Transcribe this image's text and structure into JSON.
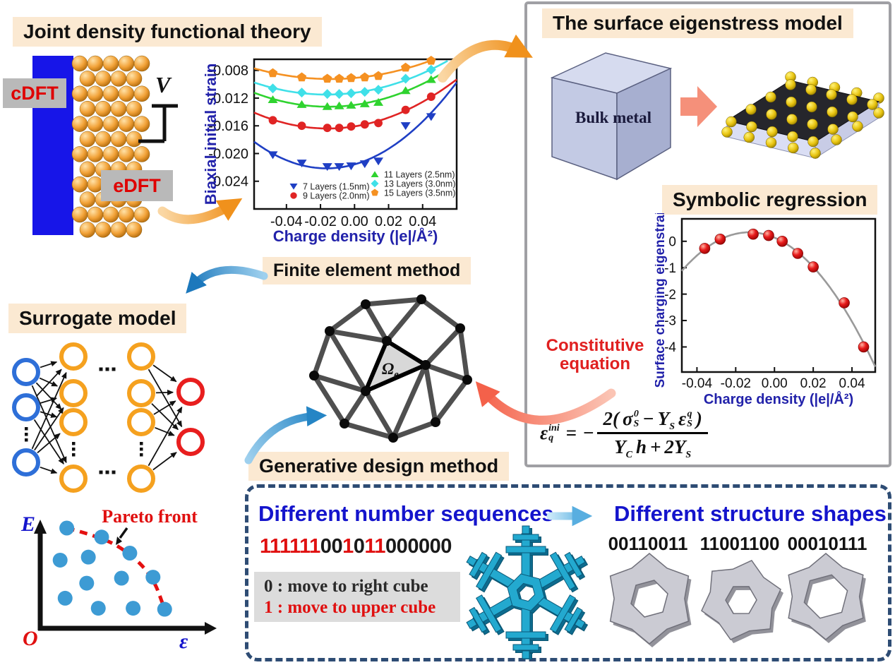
{
  "colors": {
    "peach": "#FBE9D2",
    "label_gray": "#B9B9B9",
    "label_red": "#DF0000",
    "blue_bar": "#1715E8",
    "axis_blue": "#2222AA",
    "title_blue": "#1414CC",
    "dash_navy": "#2E4C74",
    "arrow_orange": "#F0911C",
    "arrow_blue": "#1C78BC",
    "arrow_salmon": "#F4614A"
  },
  "jdft": {
    "title": "Joint density functional theory",
    "cdft": "cDFT",
    "edft": "eDFT",
    "voltage": "V"
  },
  "eigenstress": {
    "title": "The surface eigenstress model",
    "bulk_label": "Bulk metal"
  },
  "symbolic": {
    "title": "Symbolic regression",
    "constitutive_line1": "Constitutive",
    "constitutive_line2": "equation"
  },
  "formula": {
    "lhs": {
      "t": "ε",
      "sup": "ini",
      "sub": "q"
    },
    "eq": "=",
    "minus": "−",
    "num": [
      {
        "t": "2("
      },
      {
        "t": "σ",
        "sup": "0",
        "sub": "S"
      },
      {
        "t": "−"
      },
      {
        "t": "Y",
        "sub": "S"
      },
      {
        "t": "ε",
        "sup": "q",
        "sub": "S"
      },
      {
        "t": ")"
      }
    ],
    "den": [
      {
        "t": "Y",
        "sub": "C"
      },
      {
        "t": "h"
      },
      {
        "t": "+"
      },
      {
        "t": "2Y",
        "sub": "S"
      }
    ]
  },
  "fem": {
    "title": "Finite element method",
    "element_label": "Ω",
    "element_sub": "e"
  },
  "surrogate": {
    "title": "Surrogate model"
  },
  "generative": {
    "title": "Generative design method"
  },
  "sequence_panel": {
    "title": "Different number sequences",
    "binary": "111111001011000000",
    "one_color": "#E01010",
    "zero_color": "#1A1A1A",
    "rule_zero": "0 : move to right cube",
    "rule_one": "1 : move to upper cube"
  },
  "shapes_panel": {
    "title": "Different structure shapes",
    "labels": [
      "00110011",
      "11001100",
      "00010111"
    ]
  },
  "nn": {
    "input_color": "#2E6FD8",
    "hidden_color": "#F5A11F",
    "output_color": "#E81E1E",
    "layers": [
      {
        "type": "input",
        "count": 3
      },
      {
        "type": "hidden",
        "count": 4
      },
      {
        "type": "hidden",
        "count": 4
      },
      {
        "type": "output",
        "count": 2
      }
    ]
  },
  "chart_data": [
    {
      "type": "scatter",
      "xlabel": "Charge density (|e|/Å²)",
      "ylabel": "Biaxial initial strain",
      "xlim": [
        -0.059,
        0.06
      ],
      "ylim": [
        -0.028,
        -0.0064
      ],
      "xticks": [
        "-0.04",
        "-0.02",
        "0.00",
        "0.02",
        "0.04"
      ],
      "xtick_vals": [
        -0.04,
        -0.02,
        0,
        0.02,
        0.04
      ],
      "yticks": [
        "-0.008",
        "-0.012",
        "-0.016",
        "-0.020",
        "-0.024"
      ],
      "ytick_vals": [
        -0.008,
        -0.012,
        -0.016,
        -0.02,
        -0.024
      ],
      "x": [
        -0.048,
        -0.031,
        -0.016,
        -0.009,
        -0.002,
        0.006,
        0.014,
        0.03,
        0.045
      ],
      "series": [
        {
          "name": "7 Layers (1.5nm)",
          "marker": "triangle-down",
          "color": "#1F3FC4",
          "values": [
            -0.0202,
            -0.0214,
            -0.0219,
            -0.0219,
            -0.0218,
            -0.0215,
            -0.0211,
            -0.016,
            -0.0147
          ]
        },
        {
          "name": "9 Layers (2.0nm)",
          "marker": "circle",
          "color": "#E02424",
          "values": [
            -0.0152,
            -0.016,
            -0.0163,
            -0.0163,
            -0.0161,
            -0.0158,
            -0.0156,
            -0.0137,
            -0.0118
          ]
        },
        {
          "name": "11 Layers (2.5nm)",
          "marker": "triangle-up",
          "color": "#2FD32F",
          "values": [
            -0.0122,
            -0.0129,
            -0.0132,
            -0.0131,
            -0.013,
            -0.0128,
            -0.0126,
            -0.0109,
            -0.0093
          ]
        },
        {
          "name": "13 Layers (3.0nm)",
          "marker": "diamond",
          "color": "#3FE0E8",
          "values": [
            -0.0106,
            -0.0112,
            -0.0114,
            -0.0114,
            -0.0113,
            -0.0111,
            -0.0108,
            -0.0092,
            -0.0079
          ]
        },
        {
          "name": "15 Layers (3.5nm)",
          "marker": "pentagon",
          "color": "#F59122",
          "values": [
            -0.0084,
            -0.009,
            -0.0092,
            -0.0092,
            -0.0091,
            -0.009,
            -0.0088,
            -0.0076,
            -0.0066
          ]
        }
      ],
      "fit": "quadratic",
      "legend": "inside-bottom",
      "grid": false
    },
    {
      "type": "scatter",
      "xlabel": "Charge density (|e|/Å²)",
      "ylabel": "Surface charging eigenstrain",
      "xlim": [
        -0.0478,
        0.052
      ],
      "ylim": [
        -4.95,
        0.85
      ],
      "xticks": [
        "-0.04",
        "-0.02",
        "0.00",
        "0.02",
        "0.04"
      ],
      "xtick_vals": [
        -0.04,
        -0.02,
        0,
        0.02,
        0.04
      ],
      "yticks": [
        "0",
        "-1",
        "-2",
        "-3",
        "-4"
      ],
      "ytick_vals": [
        0,
        -1,
        -2,
        -3,
        -4
      ],
      "x": [
        -0.036,
        -0.028,
        -0.011,
        -0.003,
        0.004,
        0.012,
        0.02,
        0.036,
        0.046
      ],
      "series": [
        {
          "name": "surface charging eigenstrain",
          "marker": "sphere",
          "color": "#E01818",
          "values": [
            -0.27,
            0.08,
            0.27,
            0.22,
            0.0,
            -0.46,
            -0.97,
            -2.33,
            -4.0
          ]
        }
      ],
      "fit": "quadratic",
      "curve_color": "#9A9A9A",
      "grid": false
    },
    {
      "type": "scatter",
      "xlabel": "ε",
      "ylabel": "E",
      "origin_label": "O",
      "annotation": "Pareto front",
      "front": [
        [
          0.16,
          1.0
        ],
        [
          0.37,
          0.91
        ],
        [
          0.54,
          0.75
        ],
        [
          0.68,
          0.51
        ],
        [
          0.75,
          0.19
        ]
      ],
      "dominated": [
        [
          0.12,
          0.68
        ],
        [
          0.29,
          0.71
        ],
        [
          0.15,
          0.3
        ],
        [
          0.28,
          0.45
        ],
        [
          0.35,
          0.2
        ],
        [
          0.49,
          0.5
        ],
        [
          0.56,
          0.2
        ]
      ],
      "dot_color": "#3D9BD4",
      "front_color": "#E41010"
    }
  ]
}
